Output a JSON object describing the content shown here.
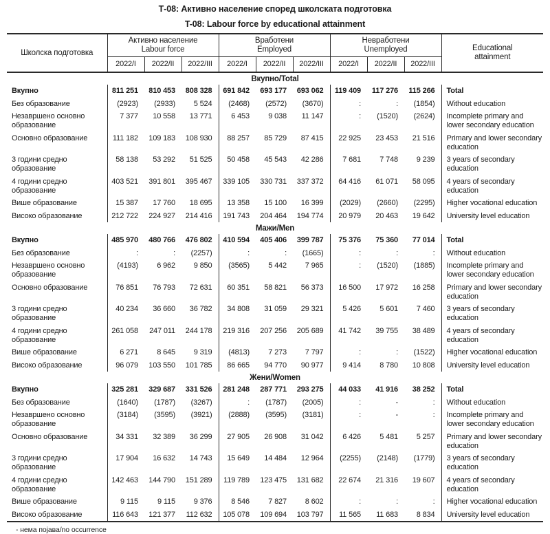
{
  "titles": {
    "mk": "Т-08: Активно население според школската подготовка",
    "en": "T-08: Labour force by educational attainment"
  },
  "header": {
    "col1": "Школска подготовка",
    "groups": [
      {
        "mk": "Активно население",
        "en": "Labour force"
      },
      {
        "mk": "Вработени",
        "en": "Employed"
      },
      {
        "mk": "Невработени",
        "en": "Unemployed"
      }
    ],
    "quarters": [
      "2022/I",
      "2022/II",
      "2022/III"
    ],
    "last_col": "Educational attainment"
  },
  "sections": [
    {
      "title": "Вкупно/Total",
      "rows": [
        {
          "mk": "Вкупно",
          "en": "Total",
          "bold": true,
          "values": [
            "811 251",
            "810 453",
            "808 328",
            "691 842",
            "693 177",
            "693 062",
            "119 409",
            "117 276",
            "115 266"
          ]
        },
        {
          "mk": "Без образование",
          "en": "Without education",
          "bold": false,
          "values": [
            "(2923)",
            "(2933)",
            "5 524",
            "(2468)",
            "(2572)",
            "(3670)",
            ":",
            ":",
            "(1854)"
          ]
        },
        {
          "mk": "Незавршено основно образование",
          "en": "Incomplete primary and lower secondary education",
          "bold": false,
          "values": [
            "7 377",
            "10 558",
            "13 771",
            "6 453",
            "9 038",
            "11 147",
            ":",
            "(1520)",
            "(2624)"
          ]
        },
        {
          "mk": "Основно образование",
          "en": "Primary and lower secondary education",
          "bold": false,
          "values": [
            "111 182",
            "109 183",
            "108 930",
            "88 257",
            "85 729",
            "87 415",
            "22 925",
            "23 453",
            "21 516"
          ]
        },
        {
          "mk": "3 години средно образование",
          "en": "3 years of secondary education",
          "bold": false,
          "values": [
            "58 138",
            "53 292",
            "51 525",
            "50 458",
            "45 543",
            "42 286",
            "7 681",
            "7 748",
            "9 239"
          ]
        },
        {
          "mk": "4 години средно образование",
          "en": "4 years of secondary education",
          "bold": false,
          "values": [
            "403 521",
            "391 801",
            "395 467",
            "339 105",
            "330 731",
            "337 372",
            "64 416",
            "61 071",
            "58 095"
          ]
        },
        {
          "mk": "Више образование",
          "en": "Higher vocational education",
          "bold": false,
          "values": [
            "15 387",
            "17 760",
            "18 695",
            "13 358",
            "15 100",
            "16 399",
            "(2029)",
            "(2660)",
            "(2295)"
          ]
        },
        {
          "mk": "Високо образование",
          "en": "University level education",
          "bold": false,
          "values": [
            "212 722",
            "224 927",
            "214 416",
            "191 743",
            "204 464",
            "194 774",
            "20 979",
            "20 463",
            "19 642"
          ]
        }
      ]
    },
    {
      "title": "Мажи/Men",
      "rows": [
        {
          "mk": "Вкупно",
          "en": "Total",
          "bold": true,
          "values": [
            "485 970",
            "480 766",
            "476 802",
            "410 594",
            "405 406",
            "399 787",
            "75 376",
            "75 360",
            "77 014"
          ]
        },
        {
          "mk": "Без образование",
          "en": "Without education",
          "bold": false,
          "values": [
            ":",
            ":",
            "(2257)",
            ":",
            ":",
            "(1665)",
            ":",
            ":",
            ":"
          ]
        },
        {
          "mk": "Незавршено основно образование",
          "en": "Incomplete primary and lower secondary education",
          "bold": false,
          "values": [
            "(4193)",
            "6 962",
            "9 850",
            "(3565)",
            "5 442",
            "7 965",
            ":",
            "(1520)",
            "(1885)"
          ]
        },
        {
          "mk": "Основно образование",
          "en": "Primary and lower secondary education",
          "bold": false,
          "values": [
            "76 851",
            "76 793",
            "72 631",
            "60 351",
            "58 821",
            "56 373",
            "16 500",
            "17 972",
            "16 258"
          ]
        },
        {
          "mk": "3 години средно образование",
          "en": "3 years of secondary education",
          "bold": false,
          "values": [
            "40 234",
            "36 660",
            "36 782",
            "34 808",
            "31 059",
            "29 321",
            "5 426",
            "5 601",
            "7 460"
          ]
        },
        {
          "mk": "4 години средно образование",
          "en": "4 years of secondary education",
          "bold": false,
          "values": [
            "261 058",
            "247 011",
            "244 178",
            "219 316",
            "207 256",
            "205 689",
            "41 742",
            "39 755",
            "38 489"
          ]
        },
        {
          "mk": "Више образование",
          "en": "Higher vocational education",
          "bold": false,
          "values": [
            "6 271",
            "8 645",
            "9 319",
            "(4813)",
            "7 273",
            "7 797",
            ":",
            ":",
            "(1522)"
          ]
        },
        {
          "mk": "Високо образование",
          "en": "University level education",
          "bold": false,
          "values": [
            "96 079",
            "103 550",
            "101 785",
            "86 665",
            "94 770",
            "90 977",
            "9 414",
            "8 780",
            "10 808"
          ]
        }
      ]
    },
    {
      "title": "Жени/Women",
      "rows": [
        {
          "mk": "Вкупно",
          "en": "Total",
          "bold": true,
          "values": [
            "325 281",
            "329 687",
            "331 526",
            "281 248",
            "287 771",
            "293 275",
            "44 033",
            "41 916",
            "38 252"
          ]
        },
        {
          "mk": "Без образование",
          "en": "Without education",
          "bold": false,
          "values": [
            "(1640)",
            "(1787)",
            "(3267)",
            ":",
            "(1787)",
            "(2005)",
            ":",
            "-",
            ":"
          ]
        },
        {
          "mk": "Незавршено основно образование",
          "en": "Incomplete primary and lower secondary education",
          "bold": false,
          "values": [
            "(3184)",
            "(3595)",
            "(3921)",
            "(2888)",
            "(3595)",
            "(3181)",
            ":",
            "-",
            ":"
          ]
        },
        {
          "mk": "Основно образование",
          "en": "Primary and lower secondary education",
          "bold": false,
          "values": [
            "34 331",
            "32 389",
            "36 299",
            "27 905",
            "26 908",
            "31 042",
            "6 426",
            "5 481",
            "5 257"
          ]
        },
        {
          "mk": "3 години средно образование",
          "en": "3 years of secondary education",
          "bold": false,
          "values": [
            "17 904",
            "16 632",
            "14 743",
            "15 649",
            "14 484",
            "12 964",
            "(2255)",
            "(2148)",
            "(1779)"
          ]
        },
        {
          "mk": "4 години средно образование",
          "en": "4 years of secondary education",
          "bold": false,
          "values": [
            "142 463",
            "144 790",
            "151 289",
            "119 789",
            "123 475",
            "131 682",
            "22 674",
            "21 316",
            "19 607"
          ]
        },
        {
          "mk": "Више образование",
          "en": "Higher vocational education",
          "bold": false,
          "values": [
            "9 115",
            "9 115",
            "9 376",
            "8 546",
            "7 827",
            "8 602",
            ":",
            ":",
            ":"
          ]
        },
        {
          "mk": "Високо образование",
          "en": "University level education",
          "bold": false,
          "values": [
            "116 643",
            "121 377",
            "112 632",
            "105 078",
            "109 694",
            "103 797",
            "11 565",
            "11 683",
            "8 834"
          ]
        }
      ]
    }
  ],
  "footnote": "- нема појава/no occurrence"
}
